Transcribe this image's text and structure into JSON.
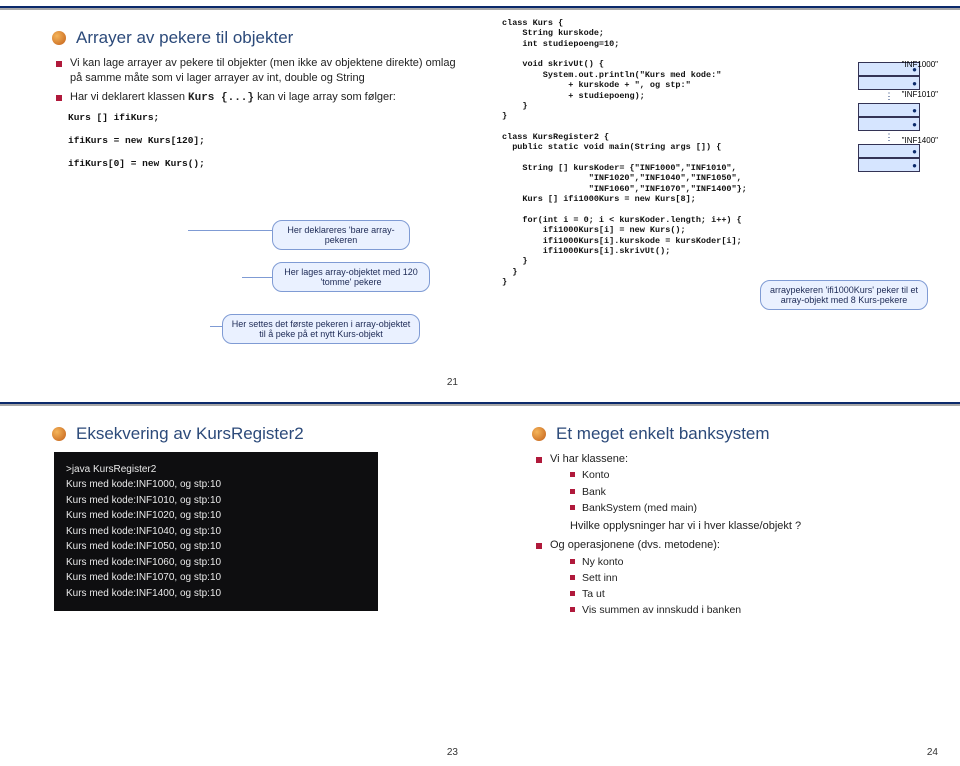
{
  "slide1": {
    "title": "Arrayer av pekere til objekter",
    "b1": "Vi kan lage arrayer av pekere til objekter (men ikke av objektene direkte) omlag på samme måte som vi lager arrayer av int, double og String",
    "b2a": "Har vi deklarert klassen ",
    "b2b": "Kurs {...}",
    "b2c": " kan vi lage array som følger:",
    "code": "Kurs [] ifiKurs;\n\nifiKurs = new Kurs[120];\n\nifiKurs[0] = new Kurs();",
    "c1": "Her deklareres 'bare array-pekeren",
    "c2": "Her lages array-objektet med 120 'tomme' pekere",
    "c3": "Her settes det første pekeren i array-objektet til å peke på et nytt Kurs-objekt",
    "page": "21"
  },
  "slide2": {
    "code": "class Kurs {\n    String kurskode;\n    int studiepoeng=10;\n\n    void skrivUt() {\n        System.out.println(\"Kurs med kode:\"\n             + kurskode + \", og stp:\"\n             + studiepoeng);\n    }\n}\n\nclass KursRegister2 {\n  public static void main(String args []) {\n\n    String [] kursKoder= {\"INF1000\",\"INF1010\",\n                 \"INF1020\",\"INF1040\",\"INF1050\",\n                 \"INF1060\",\"INF1070\",\"INF1400\"};\n    Kurs [] ifi1000Kurs = new Kurs[8];\n\n    for(int i = 0; i < kursKoder.length; i++) {\n        ifi1000Kurs[i] = new Kurs();\n        ifi1000Kurs[i].kurskode = kursKoder[i];\n        ifi1000Kurs[i].skrivUt();\n    }\n  }\n}",
    "lab1": "\"INF1000\"",
    "lab2": "\"INF1010\"",
    "lab3": "\"INF1400\"",
    "note": "arraypekeren 'ifi1000Kurs' peker til et array-objekt med 8 Kurs-pekere"
  },
  "slide3": {
    "title": "Eksekvering av KursRegister2",
    "t0": ">java KursRegister2",
    "t1": "Kurs med kode:INF1000, og stp:10",
    "t2": "Kurs med kode:INF1010, og stp:10",
    "t3": "Kurs med kode:INF1020, og stp:10",
    "t4": "Kurs med kode:INF1040, og stp:10",
    "t5": "Kurs med kode:INF1050, og stp:10",
    "t6": "Kurs med kode:INF1060, og stp:10",
    "t7": "Kurs med kode:INF1070, og stp:10",
    "t8": "Kurs med kode:INF1400, og stp:10",
    "page": "23"
  },
  "slide4": {
    "title": "Et meget enkelt banksystem",
    "b1": "Vi har klassene:",
    "s1": "Konto",
    "s2": "Bank",
    "s3": "BankSystem (med main)",
    "q": "Hvilke opplysninger har vi i hver klasse/objekt ?",
    "b2": "Og operasjonene (dvs. metodene):",
    "o1": "Ny konto",
    "o2": "Sett inn",
    "o3": "Ta ut",
    "o4": "Vis summen av innskudd i banken",
    "page": "24"
  }
}
